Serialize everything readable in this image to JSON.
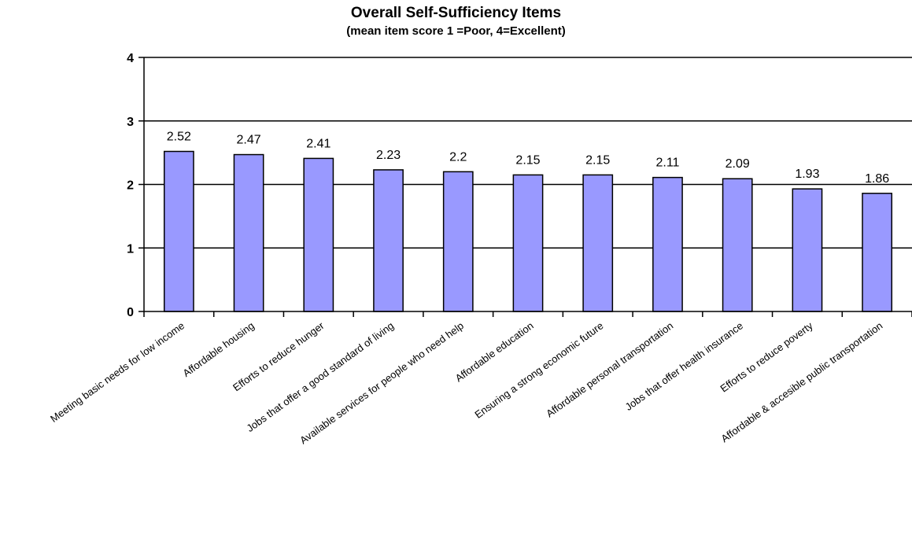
{
  "chart_data": {
    "type": "bar",
    "title": "Overall Self-Sufficiency Items",
    "subtitle": "(mean item score 1 =Poor, 4=Excellent)",
    "categories": [
      "Meeting basic needs for low income",
      "Affordable housing",
      "Efforts to reduce hunger",
      "Jobs that offer a good standard of living",
      "Available services for people who need help",
      "Affordable education",
      "Ensuring a strong economic future",
      "Affordable personal transportation",
      "Jobs that offer health insurance",
      "Efforts to reduce poverty",
      "Affordable & accesible public transportation"
    ],
    "values": [
      2.52,
      2.47,
      2.41,
      2.23,
      2.2,
      2.15,
      2.15,
      2.11,
      2.09,
      1.93,
      1.86
    ],
    "value_labels": [
      "2.52",
      "2.47",
      "2.41",
      "2.23",
      "2.2",
      "2.15",
      "2.15",
      "2.11",
      "2.09",
      "1.93",
      "1.86"
    ],
    "ylim": [
      0,
      4
    ],
    "yticks": [
      "0",
      "1",
      "2",
      "3",
      "4"
    ],
    "grid": true,
    "legend": "none",
    "bar_color": "#9999ff",
    "bar_edge_color": "#000000"
  }
}
